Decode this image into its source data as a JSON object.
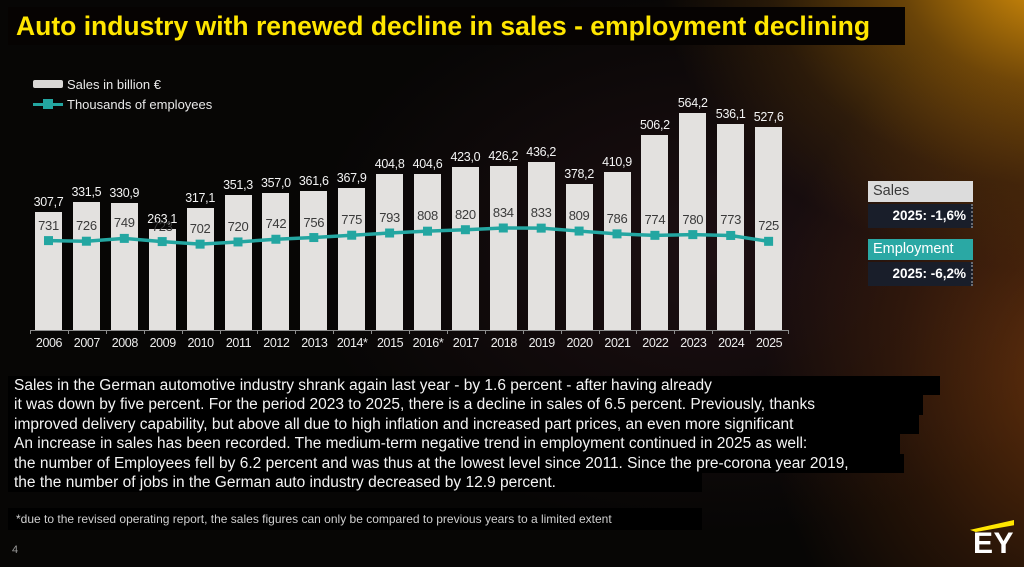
{
  "title": "Auto industry with renewed decline in sales - employment declining",
  "legend": {
    "sales_label": "Sales in billion €",
    "employees_label": "Thousands of employees"
  },
  "chart_data": {
    "type": "bar",
    "categories": [
      "2006",
      "2007",
      "2008",
      "2009",
      "2010",
      "2011",
      "2012",
      "2013",
      "2014*",
      "2015",
      "2016*",
      "2017",
      "2018",
      "2019",
      "2020",
      "2021",
      "2022",
      "2023",
      "2024",
      "2025"
    ],
    "series": [
      {
        "name": "Sales in billion €",
        "kind": "bar",
        "color": "#e3e1df",
        "values": [
          307.7,
          331.5,
          330.9,
          263.1,
          317.1,
          351.3,
          357.0,
          361.6,
          367.9,
          404.8,
          404.6,
          423.0,
          426.2,
          436.2,
          378.2,
          410.9,
          506.2,
          564.2,
          536.1,
          527.6
        ]
      },
      {
        "name": "Thousands of employees",
        "kind": "line",
        "color": "#23a6a1",
        "values": [
          731,
          726,
          749,
          723,
          702,
          720,
          742,
          756,
          775,
          793,
          808,
          820,
          834,
          833,
          809,
          786,
          774,
          780,
          773,
          725
        ]
      }
    ],
    "title": "",
    "xlabel": "",
    "ylabel": "",
    "ylim_bar": [
      0,
      610
    ],
    "grid": false,
    "legend_position": "top-left",
    "decimal_separator": ","
  },
  "side_panel": {
    "sales_label": "Sales",
    "sales_value": "2025: -1,6%",
    "employment_label": "Employment",
    "employment_value": "2025: -6,2%"
  },
  "body": {
    "lines": [
      "Sales in the German automotive industry shrank again last year - by 1.6 percent - after having already",
      "it was down by five percent. For the period 2023 to 2025, there is a decline in sales of 6.5 percent. Previously, thanks",
      "improved delivery capability, but above all due to high inflation and increased part prices, an even more significant",
      "An increase in sales has been recorded. The medium-term negative trend in employment continued in 2025 as well:",
      "the number of Employees fell by 6.2 percent and was thus at the lowest level since 2011. Since the pre-corona year 2019,",
      "the the number of jobs in the German auto industry decreased by 12.9 percent."
    ]
  },
  "footnote": "*due to the revised operating report, the sales figures can only be compared to previous years to a limited extent",
  "page_number": "4",
  "logo_text": "EY",
  "colors": {
    "accent_yellow": "#ffe600",
    "teal": "#2aa8a4",
    "bar_fill": "#e3e1df",
    "panel_value_bg": "#191e2a",
    "panel_sales_header_bg": "#dcdcdc"
  }
}
